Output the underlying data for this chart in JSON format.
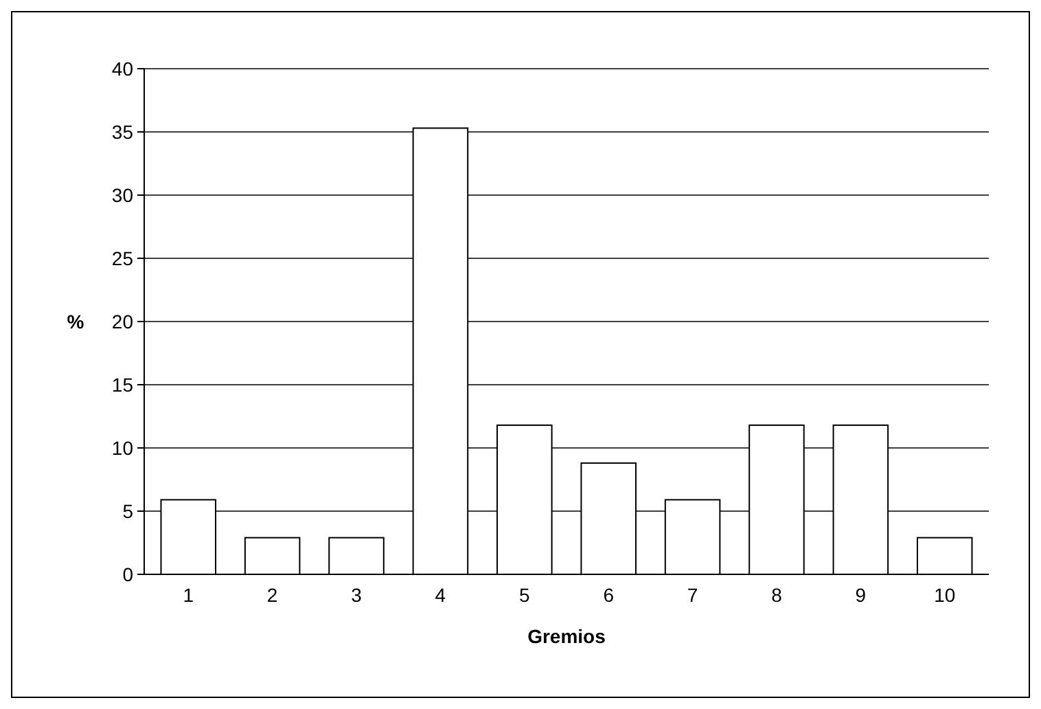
{
  "chart_data": {
    "type": "bar",
    "xlabel": "Gremios",
    "ylabel": "%",
    "categories": [
      "1",
      "2",
      "3",
      "4",
      "5",
      "6",
      "7",
      "8",
      "9",
      "10"
    ],
    "values": [
      5.9,
      2.9,
      2.9,
      35.3,
      11.8,
      8.8,
      5.9,
      11.8,
      11.8,
      2.9
    ],
    "color": "#ffffff",
    "ylim": [
      0,
      40
    ],
    "yticks": [
      0,
      5,
      10,
      15,
      20,
      25,
      30,
      35,
      40
    ],
    "grid": "y"
  }
}
